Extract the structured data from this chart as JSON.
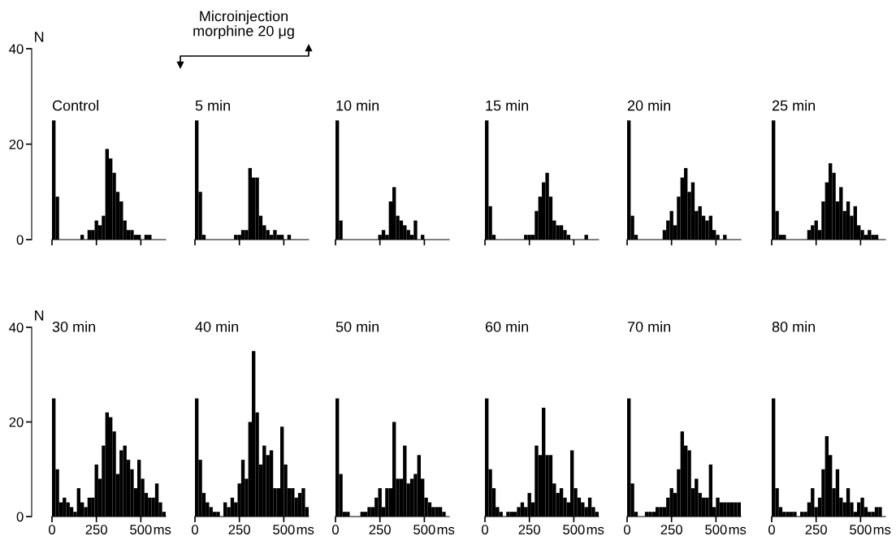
{
  "chart_data": [
    {
      "type": "histogram",
      "title": "Control",
      "ylabel": "N",
      "color": "#000000",
      "xlim": [
        0,
        640
      ],
      "ylim": [
        0,
        40
      ],
      "xticks": [
        0,
        250,
        500
      ],
      "yticks": [
        0,
        20,
        40
      ],
      "tick_labels": "y",
      "annotations": [
        "Microinjection\nmorphine 20 μg"
      ],
      "bins": [
        0,
        20,
        40,
        60,
        80,
        100,
        120,
        140,
        160,
        180,
        200,
        220,
        240,
        260,
        280,
        300,
        320,
        340,
        360,
        380,
        400,
        420,
        440,
        460,
        480,
        500,
        520,
        540,
        560,
        580,
        600,
        620,
        640
      ],
      "values": [
        25,
        9,
        0,
        0,
        0,
        0,
        0,
        0,
        1,
        0,
        2,
        2,
        4,
        3,
        5,
        19,
        17,
        14,
        10,
        8,
        4,
        2,
        2,
        1,
        1,
        0,
        1,
        1,
        0,
        0,
        0,
        0
      ]
    },
    {
      "type": "histogram",
      "title": "5 min",
      "color": "#000000",
      "xlim": [
        0,
        640
      ],
      "ylim": [
        0,
        40
      ],
      "xticks": [
        0,
        250,
        500
      ],
      "tick_labels": false,
      "bins": [
        0,
        20,
        40,
        60,
        80,
        100,
        120,
        140,
        160,
        180,
        200,
        220,
        240,
        260,
        280,
        300,
        320,
        340,
        360,
        380,
        400,
        420,
        440,
        460,
        480,
        500,
        520,
        540,
        560,
        580,
        600,
        620,
        640
      ],
      "values": [
        25,
        10,
        1,
        0,
        0,
        0,
        0,
        0,
        0,
        0,
        0,
        1,
        1,
        2,
        2,
        15,
        13,
        13,
        5,
        3,
        2,
        1,
        2,
        1,
        1,
        0,
        1,
        0,
        0,
        0,
        0,
        0
      ]
    },
    {
      "type": "histogram",
      "title": "10 min",
      "color": "#000000",
      "xlim": [
        0,
        640
      ],
      "ylim": [
        0,
        40
      ],
      "xticks": [
        0,
        250,
        500
      ],
      "tick_labels": false,
      "bins": [
        0,
        20,
        40,
        60,
        80,
        100,
        120,
        140,
        160,
        180,
        200,
        220,
        240,
        260,
        280,
        300,
        320,
        340,
        360,
        380,
        400,
        420,
        440,
        460,
        480,
        500,
        520,
        540,
        560,
        580,
        600,
        620,
        640
      ],
      "values": [
        25,
        4,
        0,
        0,
        0,
        0,
        0,
        0,
        0,
        0,
        0,
        0,
        1,
        2,
        1,
        8,
        11,
        5,
        4,
        3,
        2,
        1,
        4,
        0,
        1,
        0,
        0,
        0,
        0,
        0,
        0,
        0
      ]
    },
    {
      "type": "histogram",
      "title": "15 min",
      "color": "#000000",
      "xlim": [
        0,
        640
      ],
      "ylim": [
        0,
        40
      ],
      "xticks": [
        0,
        250,
        500
      ],
      "tick_labels": false,
      "bins": [
        0,
        20,
        40,
        60,
        80,
        100,
        120,
        140,
        160,
        180,
        200,
        220,
        240,
        260,
        280,
        300,
        320,
        340,
        360,
        380,
        400,
        420,
        440,
        460,
        480,
        500,
        520,
        540,
        560,
        580,
        600,
        620,
        640
      ],
      "values": [
        25,
        7,
        1,
        0,
        0,
        0,
        0,
        0,
        0,
        0,
        0,
        1,
        1,
        1,
        6,
        9,
        12,
        14,
        9,
        4,
        3,
        3,
        2,
        1,
        0,
        0,
        0,
        0,
        1,
        0,
        0,
        0
      ]
    },
    {
      "type": "histogram",
      "title": "20 min",
      "color": "#000000",
      "xlim": [
        0,
        640
      ],
      "ylim": [
        0,
        40
      ],
      "xticks": [
        0,
        250,
        500
      ],
      "tick_labels": false,
      "bins": [
        0,
        20,
        40,
        60,
        80,
        100,
        120,
        140,
        160,
        180,
        200,
        220,
        240,
        260,
        280,
        300,
        320,
        340,
        360,
        380,
        400,
        420,
        440,
        460,
        480,
        500,
        520,
        540,
        560,
        580,
        600,
        620,
        640
      ],
      "values": [
        25,
        5,
        1,
        0,
        0,
        0,
        0,
        0,
        0,
        0,
        2,
        4,
        6,
        3,
        9,
        13,
        15,
        10,
        12,
        6,
        7,
        5,
        4,
        5,
        2,
        1,
        0,
        1,
        0,
        0,
        0,
        0
      ]
    },
    {
      "type": "histogram",
      "title": "25 min",
      "color": "#000000",
      "xlim": [
        0,
        640
      ],
      "ylim": [
        0,
        40
      ],
      "xticks": [
        0,
        250,
        500
      ],
      "tick_labels": false,
      "bins": [
        0,
        20,
        40,
        60,
        80,
        100,
        120,
        140,
        160,
        180,
        200,
        220,
        240,
        260,
        280,
        300,
        320,
        340,
        360,
        380,
        400,
        420,
        440,
        460,
        480,
        500,
        520,
        540,
        560,
        580,
        600,
        620,
        640
      ],
      "values": [
        25,
        6,
        1,
        1,
        0,
        0,
        0,
        0,
        0,
        0,
        2,
        3,
        4,
        2,
        8,
        12,
        16,
        14,
        8,
        11,
        6,
        8,
        5,
        7,
        3,
        2,
        1,
        2,
        1,
        1,
        0,
        0
      ]
    },
    {
      "type": "histogram",
      "title": "30 min",
      "ylabel": "N",
      "xlabel": "ms",
      "color": "#000000",
      "xlim": [
        0,
        640
      ],
      "ylim": [
        0,
        40
      ],
      "xticks": [
        0,
        250,
        500
      ],
      "yticks": [
        0,
        20,
        40
      ],
      "bins": [
        0,
        20,
        40,
        60,
        80,
        100,
        120,
        140,
        160,
        180,
        200,
        220,
        240,
        260,
        280,
        300,
        320,
        340,
        360,
        380,
        400,
        420,
        440,
        460,
        480,
        500,
        520,
        540,
        560,
        580,
        600,
        620,
        640
      ],
      "values": [
        25,
        10,
        3,
        4,
        3,
        2,
        1,
        6,
        3,
        2,
        4,
        4,
        11,
        8,
        15,
        22,
        21,
        18,
        9,
        14,
        15,
        12,
        10,
        6,
        12,
        8,
        5,
        4,
        4,
        7,
        3,
        1
      ]
    },
    {
      "type": "histogram",
      "title": "40 min",
      "xlabel": "ms",
      "color": "#000000",
      "xlim": [
        0,
        640
      ],
      "ylim": [
        0,
        40
      ],
      "xticks": [
        0,
        250,
        500
      ],
      "tick_labels": "x",
      "bins": [
        0,
        20,
        40,
        60,
        80,
        100,
        120,
        140,
        160,
        180,
        200,
        220,
        240,
        260,
        280,
        300,
        320,
        340,
        360,
        380,
        400,
        420,
        440,
        460,
        480,
        500,
        520,
        540,
        560,
        580,
        600,
        620,
        640
      ],
      "values": [
        25,
        12,
        5,
        3,
        2,
        1,
        1,
        0,
        3,
        2,
        4,
        3,
        7,
        12,
        8,
        20,
        35,
        22,
        11,
        15,
        13,
        14,
        6,
        6,
        19,
        11,
        6,
        6,
        4,
        5,
        6,
        2
      ]
    },
    {
      "type": "histogram",
      "title": "50 min",
      "xlabel": "ms",
      "color": "#000000",
      "xlim": [
        0,
        640
      ],
      "ylim": [
        0,
        40
      ],
      "xticks": [
        0,
        250,
        500
      ],
      "tick_labels": "x",
      "bins": [
        0,
        20,
        40,
        60,
        80,
        100,
        120,
        140,
        160,
        180,
        200,
        220,
        240,
        260,
        280,
        300,
        320,
        340,
        360,
        380,
        400,
        420,
        440,
        460,
        480,
        500,
        520,
        540,
        560,
        580,
        600,
        620,
        640
      ],
      "values": [
        25,
        9,
        1,
        1,
        0,
        0,
        0,
        1,
        1,
        2,
        2,
        4,
        6,
        2,
        6,
        6,
        20,
        8,
        8,
        15,
        7,
        8,
        9,
        13,
        8,
        4,
        3,
        2,
        2,
        2,
        1,
        0
      ]
    },
    {
      "type": "histogram",
      "title": "60 min",
      "xlabel": "ms",
      "color": "#000000",
      "xlim": [
        0,
        640
      ],
      "ylim": [
        0,
        40
      ],
      "xticks": [
        0,
        250,
        500
      ],
      "tick_labels": "x",
      "bins": [
        0,
        20,
        40,
        60,
        80,
        100,
        120,
        140,
        160,
        180,
        200,
        220,
        240,
        260,
        280,
        300,
        320,
        340,
        360,
        380,
        400,
        420,
        440,
        460,
        480,
        500,
        520,
        540,
        560,
        580,
        600,
        620,
        640
      ],
      "values": [
        25,
        10,
        6,
        2,
        1,
        0,
        1,
        1,
        1,
        2,
        3,
        2,
        5,
        3,
        15,
        13,
        23,
        13,
        13,
        7,
        5,
        6,
        4,
        3,
        14,
        6,
        4,
        3,
        2,
        4,
        2,
        1
      ]
    },
    {
      "type": "histogram",
      "title": "70 min",
      "xlabel": "ms",
      "color": "#000000",
      "xlim": [
        0,
        640
      ],
      "ylim": [
        0,
        40
      ],
      "xticks": [
        0,
        250,
        500
      ],
      "tick_labels": "x",
      "bins": [
        0,
        20,
        40,
        60,
        80,
        100,
        120,
        140,
        160,
        180,
        200,
        220,
        240,
        260,
        280,
        300,
        320,
        340,
        360,
        380,
        400,
        420,
        440,
        460,
        480,
        500,
        520,
        540,
        560,
        580,
        600,
        620,
        640
      ],
      "values": [
        25,
        7,
        1,
        0,
        0,
        1,
        1,
        1,
        2,
        2,
        2,
        4,
        6,
        5,
        10,
        18,
        15,
        14,
        6,
        8,
        5,
        4,
        4,
        11,
        2,
        4,
        3,
        3,
        3,
        3,
        3,
        3
      ]
    },
    {
      "type": "histogram",
      "title": "80 min",
      "xlabel": "ms",
      "color": "#000000",
      "xlim": [
        0,
        640
      ],
      "ylim": [
        0,
        40
      ],
      "xticks": [
        0,
        250,
        500
      ],
      "tick_labels": "x",
      "bins": [
        0,
        20,
        40,
        60,
        80,
        100,
        120,
        140,
        160,
        180,
        200,
        220,
        240,
        260,
        280,
        300,
        320,
        340,
        360,
        380,
        400,
        420,
        440,
        460,
        480,
        500,
        520,
        540,
        560,
        580,
        600,
        620,
        640
      ],
      "values": [
        25,
        6,
        2,
        1,
        1,
        1,
        1,
        0,
        1,
        1,
        3,
        6,
        2,
        4,
        10,
        17,
        13,
        6,
        10,
        4,
        3,
        6,
        3,
        1,
        3,
        4,
        2,
        1,
        1,
        2,
        2,
        0
      ]
    }
  ]
}
